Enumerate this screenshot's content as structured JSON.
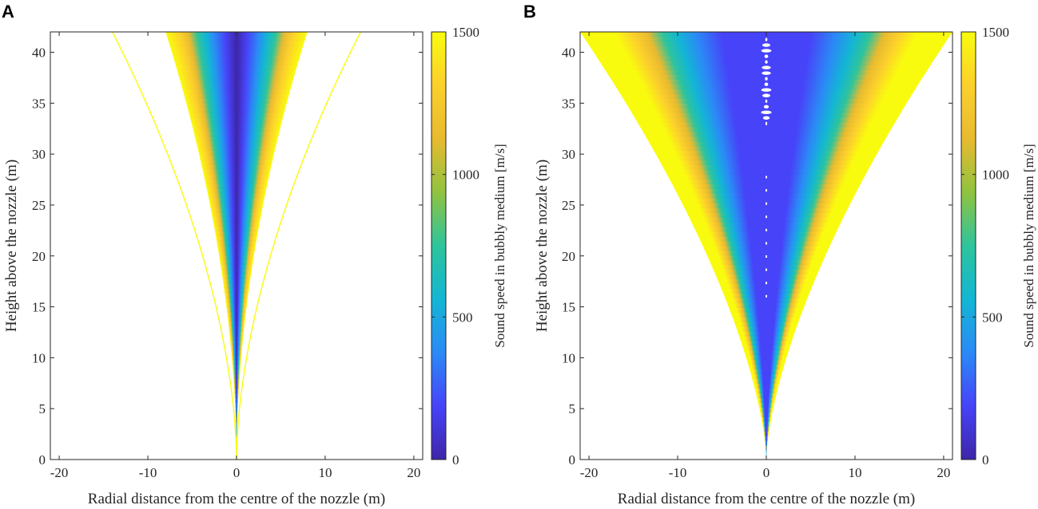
{
  "colors": {
    "colormap": [
      "#3e26a8",
      "#4743f8",
      "#2b8af6",
      "#13b6d4",
      "#2ec49c",
      "#90c33f",
      "#e8ba30",
      "#fcd02c",
      "#f9fb0e"
    ],
    "axis": "#262626",
    "background": "#ffffff"
  },
  "chart_data": [
    {
      "panel": "A",
      "type": "heatmap",
      "xlabel": "Radial distance from the centre of the nozzle (m)",
      "ylabel": "Height above the nozzle (m)",
      "xlim": [
        -21,
        21
      ],
      "ylim": [
        0,
        42
      ],
      "xticks": [
        -20,
        -10,
        0,
        10,
        20
      ],
      "yticks": [
        0,
        5,
        10,
        15,
        20,
        25,
        30,
        35,
        40
      ],
      "xtick_labels": [
        "-20",
        "-10",
        "0",
        "10",
        "20"
      ],
      "ytick_labels": [
        "0",
        "5",
        "10",
        "15",
        "20",
        "25",
        "30",
        "35",
        "40"
      ],
      "colorbar": {
        "label": "Sound speed in bubbly medium [m/s]",
        "range": [
          0,
          1500
        ],
        "ticks": [
          0,
          500,
          1000,
          1500
        ],
        "tick_labels": [
          "0",
          "500",
          "1000",
          "1500"
        ]
      },
      "plume_half_width_at_top": 8,
      "outer_boundary_half_width_at_top": 14,
      "plume_height": 42
    },
    {
      "panel": "B",
      "type": "heatmap",
      "xlabel": "Radial distance from the centre of the nozzle (m)",
      "ylabel": "Height above the nozzle (m)",
      "xlim": [
        -21,
        21
      ],
      "ylim": [
        0,
        42
      ],
      "xticks": [
        -20,
        -10,
        0,
        10,
        20
      ],
      "yticks": [
        0,
        5,
        10,
        15,
        20,
        25,
        30,
        35,
        40
      ],
      "xtick_labels": [
        "-20",
        "-10",
        "0",
        "10",
        "20"
      ],
      "ytick_labels": [
        "0",
        "5",
        "10",
        "15",
        "20",
        "25",
        "30",
        "35",
        "40"
      ],
      "colorbar": {
        "label": "Sound speed in bubbly medium [m/s]",
        "range": [
          0,
          1500
        ],
        "ticks": [
          0,
          500,
          1000,
          1500
        ],
        "tick_labels": [
          "0",
          "500",
          "1000",
          "1500"
        ]
      },
      "plume_half_width_at_top": 21,
      "plume_height": 42
    }
  ]
}
